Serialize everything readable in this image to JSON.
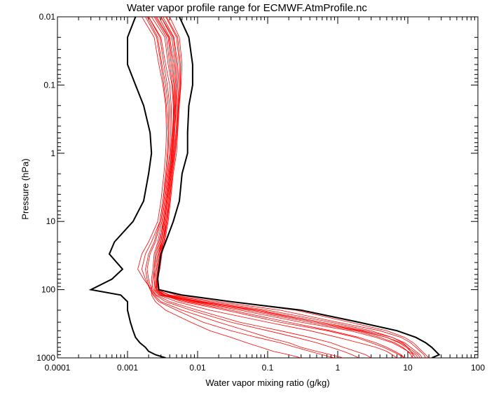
{
  "chart_data": {
    "type": "line",
    "title": "Water vapor profile range for ECMWF.AtmProfile.nc",
    "xlabel": "Water vapor mixing ratio (g/kg)",
    "ylabel": "Pressure (hPa)",
    "x_scale": "log",
    "y_scale": "log",
    "y_inverted": true,
    "xlim": [
      0.0001,
      100
    ],
    "ylim": [
      0.01,
      1000
    ],
    "x_ticks": [
      "0.0001",
      "0.001",
      "0.01",
      "0.1",
      "1",
      "10",
      "100"
    ],
    "y_ticks": [
      "0.01",
      "0.1",
      "1",
      "10",
      "100",
      "1000"
    ],
    "grid": false,
    "pressure_levels": [
      0.01,
      0.02,
      0.05,
      0.1,
      0.2,
      0.5,
      1,
      2,
      5,
      10,
      20,
      30,
      50,
      70,
      100,
      120,
      150,
      200,
      300,
      400,
      500,
      600,
      700,
      800,
      900,
      1000
    ],
    "range_envelope": {
      "color": "#000000",
      "min": [
        0.0013,
        0.001,
        0.001,
        0.0013,
        0.0017,
        0.0021,
        0.0022,
        0.002,
        0.0017,
        0.0012,
        0.00065,
        0.00055,
        0.00085,
        0.0006,
        0.0003,
        0.0008,
        0.001,
        0.001,
        0.0011,
        0.0012,
        0.0013,
        0.0015,
        0.0018,
        0.002,
        0.0025,
        0.0035
      ],
      "max": [
        0.0055,
        0.0075,
        0.0085,
        0.0085,
        0.0075,
        0.0072,
        0.0072,
        0.006,
        0.0055,
        0.0045,
        0.0035,
        0.003,
        0.0028,
        0.0027,
        0.0028,
        0.006,
        0.03,
        0.3,
        2.0,
        7.0,
        13.0,
        18.0,
        22.0,
        25.0,
        28.0,
        22.0
      ]
    },
    "profiles_color": "#ff0000",
    "profiles": [
      [
        0.0025,
        0.0038,
        0.0042,
        0.0046,
        0.0046,
        0.0044,
        0.0042,
        0.004,
        0.0036,
        0.0033,
        0.003,
        0.0028,
        0.0026,
        0.0025,
        0.0026,
        0.0035,
        0.011,
        0.06,
        0.5,
        2.0,
        5.0,
        8.0,
        10.0,
        12.0,
        14.0,
        15.0
      ],
      [
        0.002,
        0.003,
        0.0035,
        0.004,
        0.0042,
        0.0043,
        0.0041,
        0.0038,
        0.0034,
        0.0031,
        0.0027,
        0.0024,
        0.0023,
        0.0022,
        0.0023,
        0.0028,
        0.005,
        0.015,
        0.1,
        0.4,
        1.0,
        2.0,
        3.5,
        5.0,
        6.0,
        7.0
      ],
      [
        0.003,
        0.0045,
        0.005,
        0.0052,
        0.005,
        0.0047,
        0.0045,
        0.0042,
        0.0038,
        0.0035,
        0.0032,
        0.003,
        0.0028,
        0.0027,
        0.0027,
        0.004,
        0.02,
        0.15,
        1.0,
        4.0,
        8.0,
        11.0,
        13.0,
        15.0,
        17.0,
        18.0
      ],
      [
        0.0018,
        0.0026,
        0.003,
        0.0033,
        0.0036,
        0.0038,
        0.0037,
        0.0035,
        0.0032,
        0.0029,
        0.0022,
        0.0018,
        0.0016,
        0.0018,
        0.0021,
        0.0024,
        0.003,
        0.006,
        0.02,
        0.05,
        0.1,
        0.2,
        0.3,
        0.5,
        0.8,
        1.2
      ],
      [
        0.0035,
        0.005,
        0.0055,
        0.0056,
        0.0053,
        0.005,
        0.0047,
        0.0043,
        0.004,
        0.0037,
        0.0033,
        0.003,
        0.0028,
        0.0026,
        0.0025,
        0.003,
        0.008,
        0.04,
        0.3,
        1.5,
        3.5,
        6.0,
        8.0,
        10.0,
        11.0,
        12.0
      ],
      [
        0.0022,
        0.0034,
        0.0038,
        0.0043,
        0.0045,
        0.0045,
        0.0043,
        0.0039,
        0.0035,
        0.0032,
        0.0029,
        0.0026,
        0.0024,
        0.0023,
        0.0022,
        0.0026,
        0.004,
        0.01,
        0.04,
        0.15,
        0.4,
        0.8,
        1.2,
        1.8,
        2.5,
        3.0
      ],
      [
        0.0028,
        0.004,
        0.0046,
        0.0049,
        0.0048,
        0.0046,
        0.0044,
        0.0041,
        0.0037,
        0.0034,
        0.0031,
        0.0029,
        0.0027,
        0.0026,
        0.0028,
        0.005,
        0.03,
        0.25,
        1.5,
        5.0,
        9.0,
        12.0,
        14.0,
        16.0,
        18.0,
        20.0
      ],
      [
        0.0016,
        0.0024,
        0.0028,
        0.0032,
        0.0035,
        0.0036,
        0.0035,
        0.0033,
        0.003,
        0.0027,
        0.002,
        0.0016,
        0.0014,
        0.0017,
        0.0022,
        0.0022,
        0.0025,
        0.0035,
        0.008,
        0.015,
        0.03,
        0.05,
        0.08,
        0.12,
        0.2,
        0.3
      ],
      [
        0.004,
        0.0055,
        0.006,
        0.0058,
        0.0055,
        0.0052,
        0.005,
        0.0045,
        0.0041,
        0.0038,
        0.0034,
        0.0031,
        0.0029,
        0.0027,
        0.0026,
        0.0032,
        0.006,
        0.025,
        0.15,
        0.7,
        1.8,
        3.0,
        4.5,
        6.0,
        7.5,
        9.0
      ],
      [
        0.0024,
        0.0036,
        0.004,
        0.0044,
        0.0046,
        0.0045,
        0.0043,
        0.004,
        0.0036,
        0.0033,
        0.0028,
        0.0025,
        0.0024,
        0.0024,
        0.0024,
        0.0029,
        0.007,
        0.03,
        0.2,
        0.8,
        2.0,
        3.5,
        5.0,
        6.5,
        8.0,
        9.0
      ],
      [
        0.0032,
        0.0046,
        0.0052,
        0.0054,
        0.0052,
        0.0049,
        0.0046,
        0.0042,
        0.0039,
        0.0036,
        0.0032,
        0.0029,
        0.0027,
        0.0026,
        0.0026,
        0.0034,
        0.012,
        0.08,
        0.6,
        2.5,
        6.0,
        9.0,
        11.0,
        13.0,
        15.0,
        16.0
      ],
      [
        0.002,
        0.0029,
        0.0033,
        0.0037,
        0.004,
        0.0041,
        0.004,
        0.0037,
        0.0033,
        0.003,
        0.0025,
        0.0021,
        0.0019,
        0.002,
        0.0022,
        0.0025,
        0.0035,
        0.008,
        0.03,
        0.1,
        0.25,
        0.5,
        0.8,
        1.2,
        1.6,
        2.0
      ],
      [
        0.0026,
        0.0039,
        0.0044,
        0.0047,
        0.0047,
        0.0045,
        0.0043,
        0.004,
        0.0036,
        0.0033,
        0.003,
        0.0027,
        0.0025,
        0.0024,
        0.0025,
        0.0031,
        0.009,
        0.05,
        0.4,
        1.8,
        4.0,
        6.5,
        8.5,
        10.0,
        12.0,
        13.0
      ],
      [
        0.0036,
        0.0052,
        0.0057,
        0.0057,
        0.0054,
        0.0051,
        0.0048,
        0.0044,
        0.004,
        0.0036,
        0.0033,
        0.003,
        0.0028,
        0.0027,
        0.0027,
        0.0038,
        0.015,
        0.1,
        0.8,
        3.0,
        6.0,
        8.5,
        10.0,
        11.0,
        12.0,
        11.0
      ],
      [
        0.0019,
        0.0027,
        0.0031,
        0.0035,
        0.0038,
        0.0039,
        0.0038,
        0.0036,
        0.0032,
        0.0029,
        0.0024,
        0.002,
        0.0018,
        0.0019,
        0.0021,
        0.0023,
        0.0028,
        0.005,
        0.012,
        0.03,
        0.07,
        0.15,
        0.25,
        0.4,
        0.6,
        0.9
      ],
      [
        0.003,
        0.0043,
        0.0048,
        0.005,
        0.0049,
        0.0047,
        0.0045,
        0.0041,
        0.0037,
        0.0034,
        0.0031,
        0.0028,
        0.0026,
        0.0025,
        0.0026,
        0.0033,
        0.01,
        0.07,
        0.5,
        2.2,
        5.0,
        7.5,
        9.5,
        11.0,
        13.0,
        14.0
      ]
    ]
  }
}
